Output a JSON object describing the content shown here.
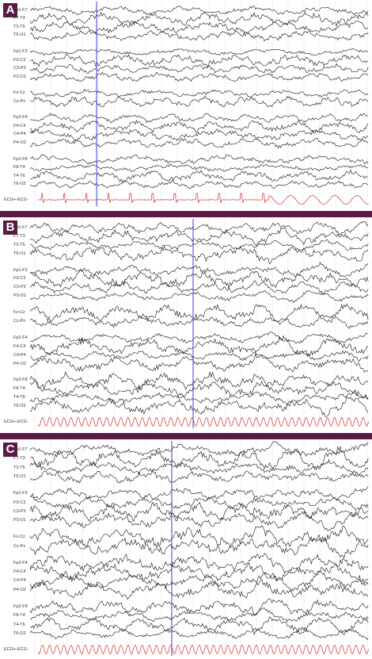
{
  "colors": {
    "separator": "#5a1a45",
    "label_bg": "#5a1a45",
    "trace": "#111111",
    "ecg_trace": "#d93030",
    "grid": "#9fd4cc",
    "marker": "#3b3bd6"
  },
  "panels": [
    {
      "label": "A",
      "groups": [
        [
          "Fp1-F7",
          "F7-T3",
          "T3-T5",
          "T5-O1"
        ],
        [
          "Fp1-F3",
          "F3-C3",
          "C3-P3",
          "P3-O1"
        ],
        [
          "Fz-Cz",
          "Cz-Pz"
        ],
        [
          "Fp2-F4",
          "F4-C4",
          "C4-P4",
          "P4-O2"
        ],
        [
          "Fp2-F8",
          "F8-T4",
          "T4-T6",
          "T6-O2"
        ]
      ],
      "ecg_label": "ECG+-ECG-"
    },
    {
      "label": "B",
      "groups": [
        [
          "Fp1-F7",
          "F7-T3",
          "T3-T5",
          "T5-O1"
        ],
        [
          "Fp1-F3",
          "F3-C3",
          "C3-P3",
          "P3-O1"
        ],
        [
          "Fz-Cz",
          "Cz-Pz"
        ],
        [
          "Fp2-F4",
          "F4-C4",
          "C4-P4",
          "P4-O2"
        ],
        [
          "Fp2-F8",
          "F8-T4",
          "T4-T6",
          "T6-O2"
        ]
      ],
      "ecg_label": "ECG+-ECG-"
    },
    {
      "label": "C",
      "groups": [
        [
          "Fp1-F7",
          "F7-T3",
          "T3-T5",
          "T5-O1"
        ],
        [
          "Fp1-F3",
          "F3-C3",
          "C3-P3",
          "P3-O1"
        ],
        [
          "Fz-Cz",
          "Cz-Pz"
        ],
        [
          "Fp2-F4",
          "F4-C4",
          "C4-P4",
          "P4-O2"
        ],
        [
          "Fp2-F8",
          "F8-T4",
          "T4-T6",
          "T6-O2"
        ]
      ],
      "ecg_label": "ECG+-ECG-"
    }
  ]
}
